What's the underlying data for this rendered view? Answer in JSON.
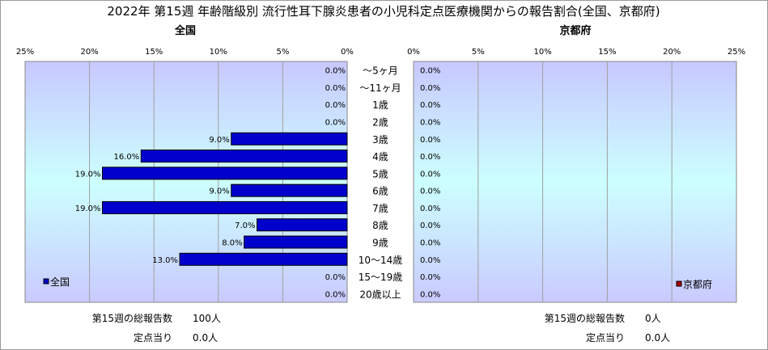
{
  "chart_data": {
    "type": "bar",
    "orientation": "horizontal",
    "title": "2022年 第15週 年齢階級別 流行性耳下腺炎患者の小児科定点医療機関からの報告割合(全国、京都府)",
    "categories": [
      "～5ヶ月",
      "～11ヶ月",
      "1歳",
      "2歳",
      "3歳",
      "4歳",
      "5歳",
      "6歳",
      "7歳",
      "8歳",
      "9歳",
      "10～14歳",
      "15～19歳",
      "20歳以上"
    ],
    "xlim": [
      0,
      25
    ],
    "ticks": [
      "25%",
      "20%",
      "15%",
      "10%",
      "5%",
      "0%"
    ],
    "ticks_right": [
      "0%",
      "5%",
      "10%",
      "15%",
      "20%",
      "25%"
    ],
    "grid": true,
    "panels": [
      {
        "subtitle": "全国",
        "series": [
          {
            "name": "全国",
            "values": [
              0,
              0,
              0,
              0,
              9,
              16,
              19,
              9,
              19,
              7,
              8,
              13,
              0,
              0
            ],
            "labels": [
              "0.0%",
              "0.0%",
              "0.0%",
              "0.0%",
              "9.0%",
              "16.0%",
              "19.0%",
              "9.0%",
              "19.0%",
              "7.0%",
              "8.0%",
              "13.0%",
              "0.0%",
              "0.0%"
            ],
            "color": "#0000cc"
          }
        ],
        "legend_position": "bottom-left"
      },
      {
        "subtitle": "京都府",
        "series": [
          {
            "name": "京都府",
            "values": [
              0,
              0,
              0,
              0,
              0,
              0,
              0,
              0,
              0,
              0,
              0,
              0,
              0,
              0
            ],
            "labels": [
              "0.0%",
              "0.0%",
              "0.0%",
              "0.0%",
              "0.0%",
              "0.0%",
              "0.0%",
              "0.0%",
              "0.0%",
              "0.0%",
              "0.0%",
              "0.0%",
              "0.0%",
              "0.0%"
            ],
            "color": "#aa0000"
          }
        ],
        "legend_position": "bottom-right"
      }
    ]
  },
  "footer": {
    "left": {
      "total_label": "第15週の総報告数",
      "total_value": "100人",
      "per_label": "定点当り",
      "per_value": "0.0人"
    },
    "right": {
      "total_label": "第15週の総報告数",
      "total_value": "0人",
      "per_label": "定点当り",
      "per_value": "0.0人"
    }
  },
  "colors": {
    "plot_top": "#c8c8ff",
    "plot_mid": "#ccffff",
    "plot_bottom": "#cacaff",
    "bar_border": "#000000"
  }
}
